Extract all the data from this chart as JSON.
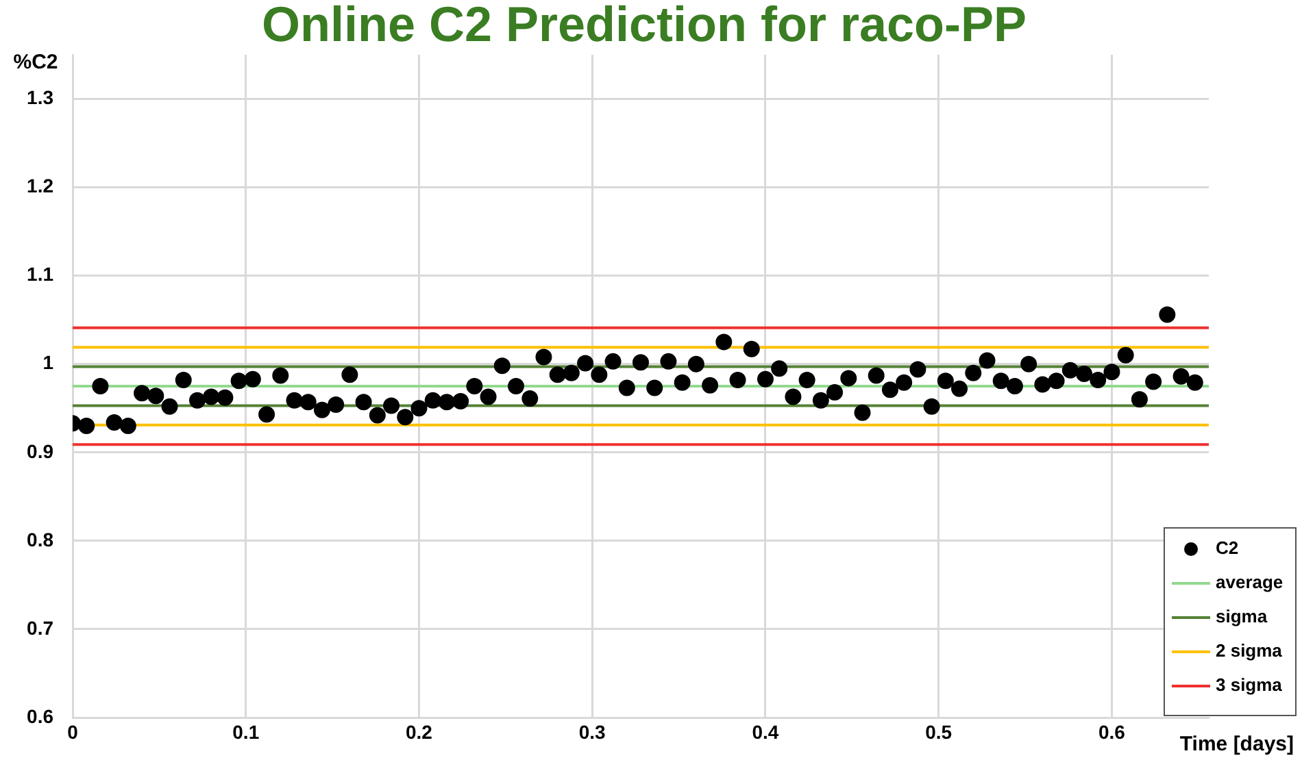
{
  "chart_data": {
    "type": "scatter",
    "title": "Online C2 Prediction for raco-PP",
    "xlabel": "Time [days]",
    "ylabel": "%C2",
    "xlim": [
      0,
      0.656
    ],
    "xticks": [
      0,
      0.1,
      0.2,
      0.3,
      0.4,
      0.5,
      0.6
    ],
    "ylim": [
      0.6,
      1.35
    ],
    "yticks": [
      0.6,
      0.7,
      0.8,
      0.9,
      1,
      1.1,
      1.2,
      1.3
    ],
    "grid": true,
    "legend": "bottom right",
    "marker": "circle",
    "series": [
      {
        "name": "C2",
        "color": "#000000",
        "x": [
          0,
          0.008,
          0.016,
          0.024,
          0.032,
          0.04,
          0.048,
          0.056,
          0.064,
          0.072,
          0.08,
          0.088,
          0.096,
          0.104,
          0.112,
          0.12,
          0.128,
          0.136,
          0.144,
          0.152,
          0.16,
          0.168,
          0.176,
          0.184,
          0.192,
          0.2,
          0.208,
          0.216,
          0.224,
          0.232,
          0.24,
          0.248,
          0.256,
          0.264,
          0.272,
          0.28,
          0.288,
          0.296,
          0.304,
          0.312,
          0.32,
          0.328,
          0.336,
          0.344,
          0.352,
          0.36,
          0.368,
          0.376,
          0.384,
          0.392,
          0.4,
          0.408,
          0.416,
          0.424,
          0.432,
          0.44,
          0.448,
          0.456,
          0.464,
          0.472,
          0.48,
          0.488,
          0.496,
          0.504,
          0.512,
          0.52,
          0.528,
          0.536,
          0.544,
          0.552,
          0.56,
          0.568,
          0.576,
          0.584,
          0.592,
          0.6,
          0.608,
          0.616,
          0.624,
          0.632,
          0.64,
          0.648
        ],
        "values": [
          0.933,
          0.93,
          0.975,
          0.934,
          0.93,
          0.967,
          0.964,
          0.952,
          0.982,
          0.959,
          0.963,
          0.962,
          0.981,
          0.983,
          0.943,
          0.987,
          0.959,
          0.957,
          0.948,
          0.954,
          0.988,
          0.957,
          0.942,
          0.953,
          0.94,
          0.95,
          0.959,
          0.957,
          0.958,
          0.975,
          0.963,
          0.998,
          0.975,
          0.961,
          1.008,
          0.988,
          0.99,
          1.001,
          0.988,
          1.003,
          0.973,
          1.002,
          0.973,
          1.003,
          0.979,
          1.0,
          0.976,
          1.025,
          0.982,
          1.017,
          0.983,
          0.995,
          0.963,
          0.982,
          0.959,
          0.968,
          0.984,
          0.945,
          0.987,
          0.971,
          0.979,
          0.994,
          0.952,
          0.981,
          0.972,
          0.99,
          1.004,
          0.981,
          0.975,
          1.0,
          0.977,
          0.981,
          0.993,
          0.989,
          0.982,
          0.991,
          1.01,
          0.96,
          0.98,
          1.056,
          0.986,
          0.979
        ]
      }
    ],
    "ref_lines": [
      {
        "axis": "y",
        "value": 0.975,
        "label": "average",
        "color": "#92d98f"
      },
      {
        "axis": "y",
        "value": 0.997,
        "label": "sigma",
        "color": "#548235"
      },
      {
        "axis": "y",
        "value": 0.953,
        "label": null,
        "color": "#548235"
      },
      {
        "axis": "y",
        "value": 1.019,
        "label": "2 sigma",
        "color": "#ffc000"
      },
      {
        "axis": "y",
        "value": 0.931,
        "label": null,
        "color": "#ffc000"
      },
      {
        "axis": "y",
        "value": 1.041,
        "label": "3 sigma",
        "color": "#f03030"
      },
      {
        "axis": "y",
        "value": 0.909,
        "label": null,
        "color": "#f03030"
      }
    ]
  }
}
